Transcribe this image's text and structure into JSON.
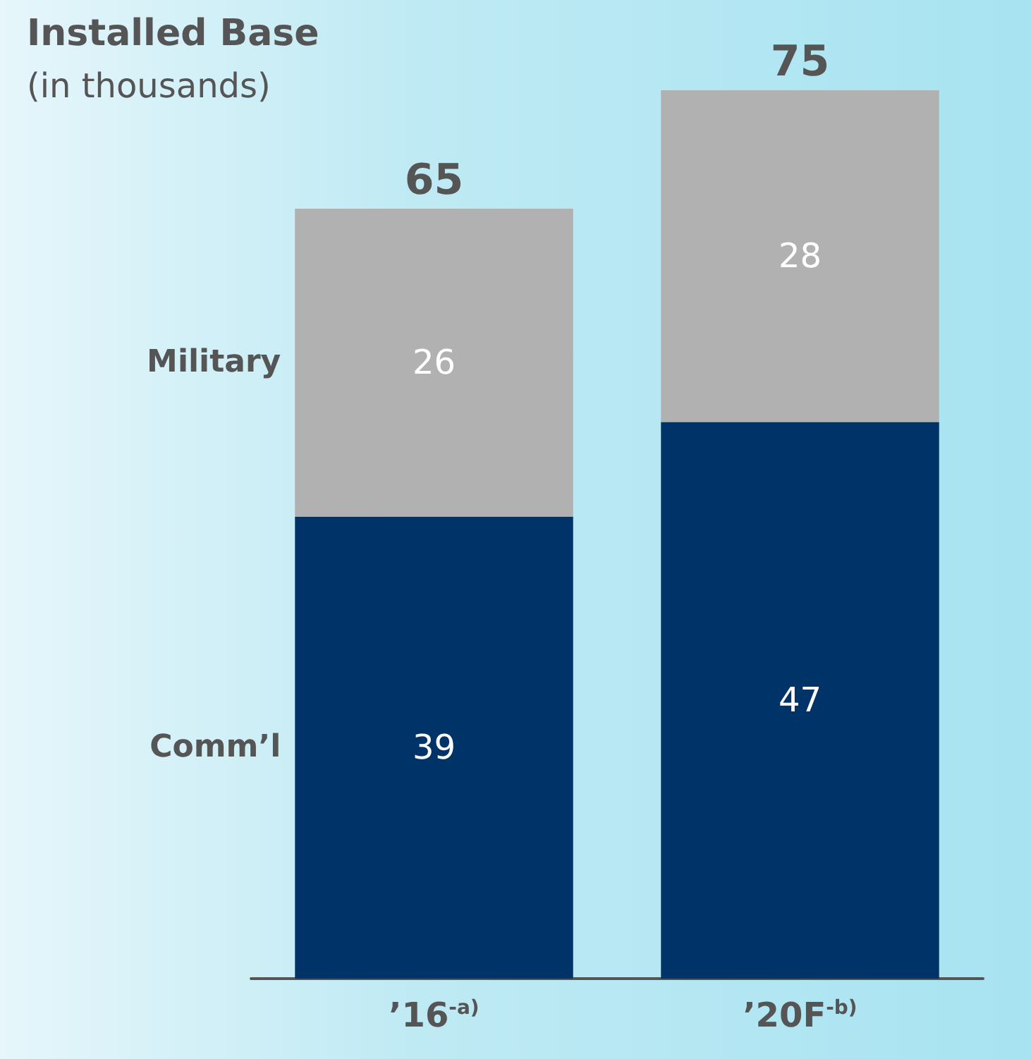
{
  "chart_data": {
    "type": "bar",
    "title": "Installed Base",
    "subtitle": "(in thousands)",
    "categories": [
      "’16$^{-a)}$",
      "’20F$^{-b)}$"
    ],
    "series": [
      {
        "name": "Comm’l",
        "color": "#003469",
        "values": [
          39,
          47
        ]
      },
      {
        "name": "Military",
        "color": "#b1b1b1",
        "values": [
          26,
          28
        ]
      }
    ],
    "stacked": true,
    "data_labels": true,
    "totals": [
      "65",
      "75"
    ],
    "tick_labels": "x",
    "legend": false
  }
}
